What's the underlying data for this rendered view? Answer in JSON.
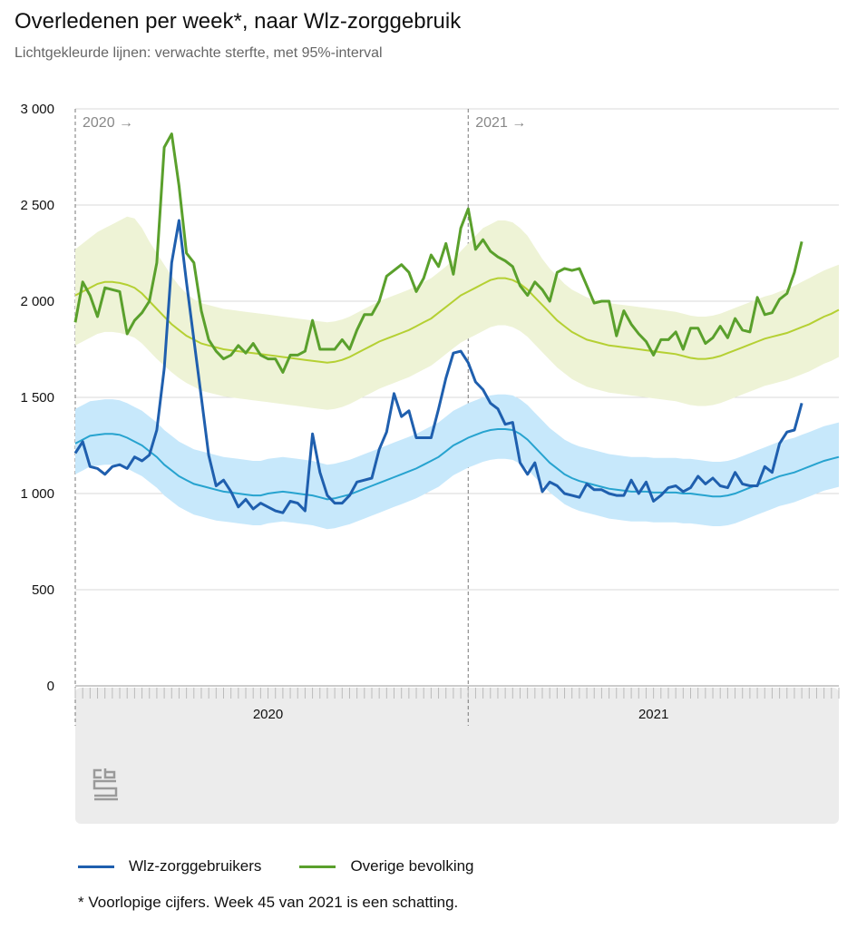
{
  "header": {
    "title": "Overledenen per week*, naar Wlz-zorggebruik",
    "subtitle": "Lichtgekleurde lijnen: verwachte sterfte, met 95%-interval"
  },
  "footnote": "* Voorlopige cijfers. Week 45 van 2021 is een schatting.",
  "chart_data": {
    "type": "line",
    "title": "Overledenen per week*, naar Wlz-zorggebruik",
    "subtitle": "Lichtgekleurde lijnen: verwachte sterfte, met 95%-interval",
    "x_unit": "week",
    "x_range": [
      1,
      104
    ],
    "ylim": [
      0,
      3000
    ],
    "yticks": [
      0,
      500,
      1000,
      1500,
      2000,
      2500,
      3000
    ],
    "ytick_labels": [
      "0",
      "500",
      "1 000",
      "1 500",
      "2 000",
      "2 500",
      "3 000"
    ],
    "x_groups": [
      {
        "label": "2020",
        "start_week": 1,
        "end_week": 53
      },
      {
        "label": "2021",
        "start_week": 54,
        "end_week": 104
      }
    ],
    "annotations": [
      {
        "text": "2020 →",
        "at_week": 1
      },
      {
        "text": "2021 →",
        "at_week": 54
      }
    ],
    "grid": true,
    "legend_position": "bottom",
    "series": [
      {
        "name": "Wlz-zorggebruikers",
        "color": "#1f5fae",
        "observed": [
          1210,
          1270,
          1140,
          1130,
          1100,
          1140,
          1150,
          1130,
          1190,
          1170,
          1200,
          1330,
          1650,
          2200,
          2420,
          2100,
          1800,
          1500,
          1200,
          1040,
          1070,
          1010,
          930,
          970,
          920,
          950,
          930,
          910,
          900,
          960,
          950,
          910,
          1310,
          1110,
          990,
          950,
          950,
          990,
          1060,
          1070,
          1080,
          1230,
          1320,
          1520,
          1400,
          1430,
          1290,
          1290,
          1290,
          1440,
          1600,
          1730,
          1740,
          1680,
          1580,
          1540,
          1470,
          1440,
          1360,
          1370,
          1160,
          1100,
          1160,
          1010,
          1060,
          1040,
          1000,
          990,
          980,
          1050,
          1020,
          1020,
          1000,
          990,
          990,
          1070,
          1000,
          1060,
          960,
          990,
          1030,
          1040,
          1010,
          1030,
          1090,
          1050,
          1080,
          1040,
          1030,
          1110,
          1050,
          1040,
          1040,
          1140,
          1110,
          1260,
          1320,
          1330,
          1470
        ],
        "expected": [
          1260,
          1280,
          1300,
          1305,
          1310,
          1310,
          1305,
          1290,
          1270,
          1250,
          1220,
          1190,
          1150,
          1120,
          1090,
          1070,
          1050,
          1040,
          1030,
          1020,
          1010,
          1005,
          1000,
          995,
          990,
          990,
          1000,
          1005,
          1010,
          1005,
          1000,
          995,
          990,
          980,
          970,
          975,
          985,
          995,
          1010,
          1025,
          1040,
          1055,
          1070,
          1085,
          1100,
          1115,
          1130,
          1150,
          1170,
          1190,
          1220,
          1250,
          1270,
          1290,
          1305,
          1320,
          1330,
          1335,
          1335,
          1330,
          1310,
          1280,
          1240,
          1200,
          1160,
          1130,
          1100,
          1080,
          1065,
          1055,
          1045,
          1035,
          1025,
          1020,
          1015,
          1010,
          1010,
          1010,
          1005,
          1005,
          1005,
          1005,
          1000,
          1000,
          995,
          990,
          985,
          985,
          990,
          1000,
          1015,
          1030,
          1045,
          1060,
          1075,
          1090,
          1100,
          1110,
          1125,
          1140,
          1155,
          1170,
          1180,
          1190
        ],
        "interval_low": [
          1100,
          1120,
          1140,
          1145,
          1150,
          1150,
          1145,
          1130,
          1110,
          1090,
          1060,
          1030,
          990,
          960,
          930,
          910,
          890,
          880,
          870,
          860,
          855,
          850,
          845,
          840,
          835,
          835,
          845,
          850,
          855,
          850,
          845,
          840,
          835,
          825,
          815,
          820,
          830,
          840,
          855,
          870,
          885,
          900,
          915,
          930,
          945,
          960,
          975,
          995,
          1015,
          1035,
          1065,
          1095,
          1115,
          1135,
          1150,
          1165,
          1175,
          1180,
          1180,
          1175,
          1155,
          1125,
          1085,
          1045,
          1005,
          975,
          945,
          925,
          910,
          900,
          890,
          880,
          870,
          865,
          860,
          855,
          855,
          855,
          850,
          850,
          850,
          850,
          845,
          845,
          840,
          835,
          830,
          830,
          835,
          845,
          860,
          875,
          890,
          905,
          920,
          935,
          945,
          955,
          970,
          985,
          1000,
          1015,
          1025,
          1035
        ],
        "interval_high": [
          1440,
          1460,
          1480,
          1485,
          1490,
          1490,
          1485,
          1470,
          1450,
          1430,
          1400,
          1370,
          1330,
          1300,
          1270,
          1250,
          1230,
          1220,
          1210,
          1200,
          1190,
          1185,
          1180,
          1175,
          1170,
          1170,
          1180,
          1185,
          1190,
          1185,
          1180,
          1175,
          1170,
          1160,
          1150,
          1155,
          1165,
          1175,
          1190,
          1205,
          1220,
          1235,
          1250,
          1265,
          1280,
          1295,
          1310,
          1330,
          1350,
          1370,
          1400,
          1430,
          1450,
          1470,
          1485,
          1500,
          1510,
          1515,
          1515,
          1510,
          1490,
          1460,
          1420,
          1380,
          1340,
          1310,
          1280,
          1260,
          1245,
          1235,
          1225,
          1215,
          1205,
          1200,
          1195,
          1190,
          1190,
          1190,
          1185,
          1185,
          1185,
          1185,
          1180,
          1180,
          1175,
          1170,
          1165,
          1165,
          1170,
          1180,
          1195,
          1210,
          1225,
          1240,
          1255,
          1270,
          1280,
          1290,
          1305,
          1320,
          1335,
          1350,
          1360,
          1370
        ]
      },
      {
        "name": "Overige bevolking",
        "color": "#5aa02c",
        "observed": [
          1890,
          2100,
          2030,
          1920,
          2070,
          2060,
          2050,
          1830,
          1900,
          1940,
          2000,
          2200,
          2800,
          2870,
          2600,
          2250,
          2200,
          1950,
          1800,
          1740,
          1700,
          1720,
          1770,
          1730,
          1780,
          1720,
          1700,
          1700,
          1630,
          1720,
          1720,
          1740,
          1900,
          1750,
          1750,
          1750,
          1800,
          1750,
          1850,
          1930,
          1930,
          2000,
          2130,
          2160,
          2190,
          2150,
          2050,
          2120,
          2240,
          2180,
          2300,
          2140,
          2380,
          2480,
          2270,
          2320,
          2260,
          2230,
          2210,
          2180,
          2080,
          2030,
          2100,
          2060,
          2000,
          2150,
          2170,
          2160,
          2170,
          2080,
          1990,
          2000,
          2000,
          1820,
          1950,
          1880,
          1830,
          1790,
          1720,
          1800,
          1800,
          1840,
          1750,
          1860,
          1860,
          1780,
          1810,
          1870,
          1810,
          1910,
          1850,
          1840,
          2020,
          1930,
          1940,
          2010,
          2040,
          2150,
          2310
        ],
        "expected": [
          2030,
          2050,
          2070,
          2090,
          2100,
          2100,
          2095,
          2085,
          2070,
          2040,
          2000,
          1960,
          1920,
          1880,
          1850,
          1820,
          1800,
          1780,
          1770,
          1760,
          1750,
          1745,
          1740,
          1735,
          1730,
          1725,
          1720,
          1715,
          1710,
          1705,
          1700,
          1695,
          1690,
          1685,
          1680,
          1685,
          1695,
          1710,
          1730,
          1750,
          1770,
          1790,
          1805,
          1820,
          1835,
          1850,
          1870,
          1890,
          1910,
          1940,
          1970,
          2000,
          2030,
          2050,
          2070,
          2090,
          2110,
          2120,
          2120,
          2110,
          2090,
          2060,
          2020,
          1980,
          1940,
          1900,
          1870,
          1840,
          1820,
          1800,
          1790,
          1780,
          1770,
          1765,
          1760,
          1755,
          1750,
          1745,
          1740,
          1735,
          1730,
          1725,
          1715,
          1705,
          1700,
          1700,
          1705,
          1715,
          1730,
          1745,
          1760,
          1775,
          1790,
          1805,
          1815,
          1825,
          1835,
          1850,
          1865,
          1880,
          1900,
          1920,
          1935,
          1955
        ],
        "interval_low": [
          1770,
          1790,
          1810,
          1830,
          1840,
          1840,
          1835,
          1825,
          1810,
          1780,
          1740,
          1700,
          1665,
          1630,
          1600,
          1575,
          1555,
          1535,
          1525,
          1515,
          1505,
          1500,
          1495,
          1490,
          1485,
          1480,
          1475,
          1470,
          1465,
          1460,
          1455,
          1450,
          1445,
          1440,
          1435,
          1440,
          1450,
          1465,
          1485,
          1505,
          1525,
          1545,
          1560,
          1575,
          1590,
          1605,
          1625,
          1645,
          1665,
          1695,
          1725,
          1755,
          1785,
          1805,
          1825,
          1845,
          1865,
          1875,
          1875,
          1865,
          1845,
          1815,
          1775,
          1735,
          1695,
          1655,
          1625,
          1595,
          1575,
          1555,
          1545,
          1535,
          1525,
          1520,
          1515,
          1510,
          1505,
          1500,
          1495,
          1490,
          1485,
          1480,
          1470,
          1460,
          1455,
          1455,
          1460,
          1470,
          1485,
          1500,
          1515,
          1530,
          1545,
          1560,
          1570,
          1580,
          1590,
          1605,
          1620,
          1635,
          1655,
          1675,
          1690,
          1710
        ],
        "interval_high": [
          2270,
          2300,
          2330,
          2360,
          2380,
          2400,
          2420,
          2440,
          2430,
          2380,
          2310,
          2250,
          2190,
          2130,
          2080,
          2040,
          2010,
          1990,
          1980,
          1970,
          1960,
          1955,
          1950,
          1945,
          1940,
          1935,
          1930,
          1925,
          1920,
          1915,
          1910,
          1905,
          1900,
          1895,
          1890,
          1895,
          1905,
          1920,
          1940,
          1960,
          1980,
          2000,
          2015,
          2030,
          2045,
          2060,
          2080,
          2100,
          2120,
          2150,
          2180,
          2215,
          2260,
          2300,
          2340,
          2380,
          2400,
          2420,
          2420,
          2410,
          2380,
          2340,
          2280,
          2220,
          2170,
          2130,
          2090,
          2060,
          2040,
          2020,
          2010,
          2000,
          1990,
          1985,
          1980,
          1975,
          1970,
          1965,
          1960,
          1955,
          1950,
          1945,
          1935,
          1925,
          1920,
          1920,
          1925,
          1935,
          1950,
          1965,
          1980,
          1995,
          2010,
          2025,
          2035,
          2050,
          2065,
          2080,
          2100,
          2120,
          2140,
          2160,
          2175,
          2190
        ]
      }
    ]
  },
  "colors": {
    "band_wlz": "#c7e8fb",
    "line_wlz_expected": "#27a3cf",
    "band_other": "#eef3d6",
    "line_other_expected": "#b5d033",
    "grid": "#d8d8d8",
    "panel": "#ececec"
  },
  "logo": {
    "text": "cbs"
  }
}
